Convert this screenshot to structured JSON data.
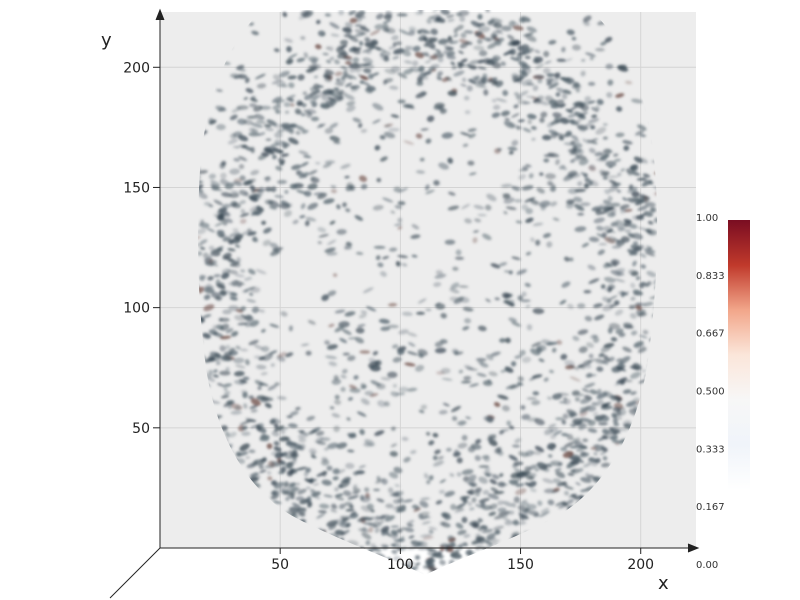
{
  "chart_data": {
    "type": "heatmap",
    "render": "3d-volume-slice",
    "xlabel": "x",
    "ylabel": "y",
    "xlim": [
      0,
      223
    ],
    "ylim": [
      0,
      223
    ],
    "x_ticks": [
      50,
      100,
      150,
      200
    ],
    "y_ticks": [
      50,
      100,
      150,
      200
    ],
    "grid": true,
    "colorscale": {
      "name": "RdBu reversed",
      "range": [
        0,
        1
      ],
      "ticks": [
        "0.00",
        "0.167",
        "0.333",
        "0.500",
        "0.667",
        "0.833",
        "1.00"
      ],
      "colors": [
        "#ffffff",
        "#f0f4fa",
        "#f7f7f7",
        "#fbe6da",
        "#f2a68a",
        "#c0392b",
        "#7a0d22"
      ]
    },
    "colors": {
      "panel": "#ededed",
      "grid": "#d4d4d4",
      "tissue": "#3b4a55",
      "axis": "#222222"
    }
  }
}
